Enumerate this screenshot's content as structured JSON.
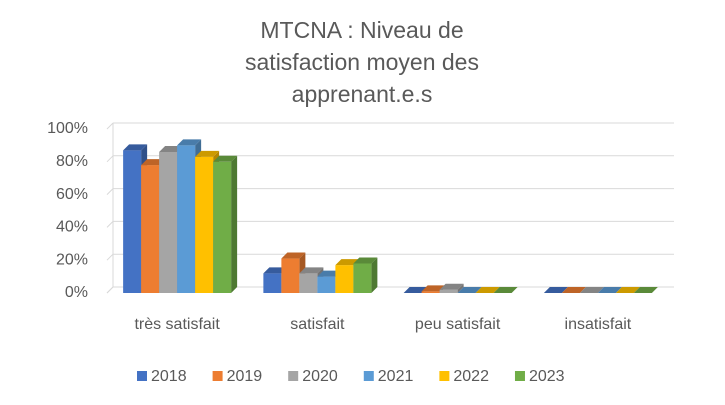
{
  "chart_data": {
    "type": "bar3d",
    "title": "MTCNA : Niveau de satisfaction moyen des apprenant.e.s",
    "categories": [
      "très satisfait",
      "satisfait",
      "peu satisfait",
      "insatisfait"
    ],
    "series": [
      {
        "name": "2018",
        "color": "#4472c4",
        "values": [
          87,
          12,
          0,
          0
        ]
      },
      {
        "name": "2019",
        "color": "#ed7d31",
        "values": [
          78,
          21,
          1,
          0
        ]
      },
      {
        "name": "2020",
        "color": "#a5a5a5",
        "values": [
          86,
          12,
          2,
          0
        ]
      },
      {
        "name": "2021",
        "color": "#5b9bd5",
        "values": [
          90,
          10,
          0,
          0
        ]
      },
      {
        "name": "2022",
        "color": "#ffc000",
        "values": [
          83,
          17,
          0,
          0
        ]
      },
      {
        "name": "2023",
        "color": "#70ad47",
        "values": [
          80,
          18,
          0,
          0
        ]
      }
    ],
    "ylim": [
      0,
      100
    ],
    "yticks": [
      {
        "value": 0,
        "label": "0%"
      },
      {
        "value": 20,
        "label": "20%"
      },
      {
        "value": 40,
        "label": "40%"
      },
      {
        "value": 60,
        "label": "60%"
      },
      {
        "value": 80,
        "label": "80%"
      },
      {
        "value": 100,
        "label": "100%"
      }
    ],
    "grid": true,
    "legend": "bottom"
  }
}
